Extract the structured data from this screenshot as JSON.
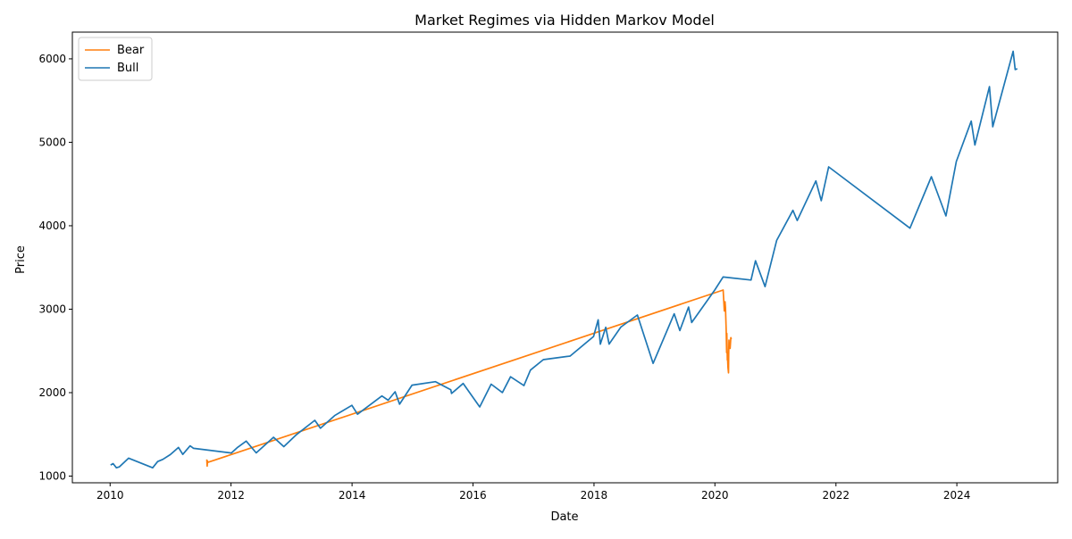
{
  "chart_data": {
    "type": "line",
    "title": "Market Regimes via Hidden Markov Model",
    "xlabel": "Date",
    "ylabel": "Price",
    "x_ticks": [
      "2010",
      "2012",
      "2014",
      "2016",
      "2018",
      "2020",
      "2022",
      "2024"
    ],
    "y_ticks": [
      1000,
      2000,
      3000,
      4000,
      5000,
      6000
    ],
    "xlim": [
      "2009-05-18",
      "2025-09-01"
    ],
    "ylim": [
      920,
      6320
    ],
    "grid": false,
    "legend_position": "top-left",
    "series": [
      {
        "name": "Bear",
        "color": "#ff7f0e",
        "points": [
          [
            "2011-08-08",
            1200
          ],
          [
            "2011-08-10",
            1120
          ],
          [
            "2011-08-12",
            1180
          ],
          [
            "2011-08-15",
            1165
          ],
          [
            "2020-02-20",
            3230
          ],
          [
            "2020-02-27",
            2980
          ],
          [
            "2020-03-02",
            3090
          ],
          [
            "2020-03-05",
            3020
          ],
          [
            "2020-03-09",
            2750
          ],
          [
            "2020-03-12",
            2480
          ],
          [
            "2020-03-13",
            2710
          ],
          [
            "2020-03-16",
            2390
          ],
          [
            "2020-03-18",
            2400
          ],
          [
            "2020-03-20",
            2300
          ],
          [
            "2020-03-23",
            2237
          ],
          [
            "2020-03-24",
            2450
          ],
          [
            "2020-03-26",
            2630
          ],
          [
            "2020-03-27",
            2540
          ],
          [
            "2020-03-31",
            2580
          ],
          [
            "2020-04-02",
            2530
          ],
          [
            "2020-04-06",
            2660
          ],
          [
            "2020-04-09",
            2640
          ]
        ]
      },
      {
        "name": "Bull",
        "color": "#1f77b4",
        "points": [
          [
            "2010-01-04",
            1133
          ],
          [
            "2010-01-19",
            1150
          ],
          [
            "2010-02-08",
            1100
          ],
          [
            "2010-02-25",
            1110
          ],
          [
            "2010-04-23",
            1215
          ],
          [
            "2010-09-15",
            1100
          ],
          [
            "2010-10-15",
            1175
          ],
          [
            "2010-11-15",
            1200
          ],
          [
            "2010-12-31",
            1258
          ],
          [
            "2011-02-18",
            1343
          ],
          [
            "2011-03-16",
            1260
          ],
          [
            "2011-04-29",
            1363
          ],
          [
            "2011-05-20",
            1333
          ],
          [
            "2012-01-03",
            1277
          ],
          [
            "2012-02-10",
            1345
          ],
          [
            "2012-04-02",
            1419
          ],
          [
            "2012-06-01",
            1278
          ],
          [
            "2012-09-14",
            1465
          ],
          [
            "2012-11-15",
            1353
          ],
          [
            "2013-01-31",
            1498
          ],
          [
            "2013-05-21",
            1669
          ],
          [
            "2013-06-24",
            1573
          ],
          [
            "2013-09-18",
            1725
          ],
          [
            "2013-12-31",
            1848
          ],
          [
            "2014-02-03",
            1741
          ],
          [
            "2014-06-30",
            1960
          ],
          [
            "2014-08-07",
            1909
          ],
          [
            "2014-09-18",
            2011
          ],
          [
            "2014-10-15",
            1862
          ],
          [
            "2014-12-29",
            2090
          ],
          [
            "2015-05-20",
            2131
          ],
          [
            "2015-08-20",
            2035
          ],
          [
            "2015-08-25",
            1990
          ],
          [
            "2015-11-03",
            2110
          ],
          [
            "2016-02-11",
            1829
          ],
          [
            "2016-04-20",
            2102
          ],
          [
            "2016-06-27",
            2001
          ],
          [
            "2016-08-15",
            2190
          ],
          [
            "2016-11-04",
            2085
          ],
          [
            "2016-12-13",
            2271
          ],
          [
            "2017-03-01",
            2396
          ],
          [
            "2017-08-10",
            2438
          ],
          [
            "2017-12-29",
            2673
          ],
          [
            "2018-01-26",
            2873
          ],
          [
            "2018-02-08",
            2581
          ],
          [
            "2018-03-13",
            2783
          ],
          [
            "2018-04-02",
            2582
          ],
          [
            "2018-06-12",
            2786
          ],
          [
            "2018-09-20",
            2930
          ],
          [
            "2018-12-24",
            2351
          ],
          [
            "2019-04-30",
            2945
          ],
          [
            "2019-06-03",
            2744
          ],
          [
            "2019-07-26",
            3025
          ],
          [
            "2019-08-14",
            2840
          ],
          [
            "2019-12-31",
            3230
          ],
          [
            "2020-02-19",
            3386
          ],
          [
            "2020-08-06",
            3349
          ],
          [
            "2020-09-02",
            3580
          ],
          [
            "2020-10-30",
            3270
          ],
          [
            "2021-01-08",
            3824
          ],
          [
            "2021-04-16",
            4185
          ],
          [
            "2021-05-12",
            4063
          ],
          [
            "2021-09-02",
            4537
          ],
          [
            "2021-10-04",
            4300
          ],
          [
            "2021-11-18",
            4705
          ],
          [
            "2023-03-24",
            3971
          ],
          [
            "2023-07-31",
            4588
          ],
          [
            "2023-10-27",
            4117
          ],
          [
            "2023-12-29",
            4769
          ],
          [
            "2024-03-28",
            5254
          ],
          [
            "2024-04-19",
            4967
          ],
          [
            "2024-07-16",
            5667
          ],
          [
            "2024-08-05",
            5186
          ],
          [
            "2024-12-06",
            6090
          ],
          [
            "2024-12-18",
            5872
          ],
          [
            "2024-12-31",
            5881
          ]
        ]
      }
    ]
  }
}
